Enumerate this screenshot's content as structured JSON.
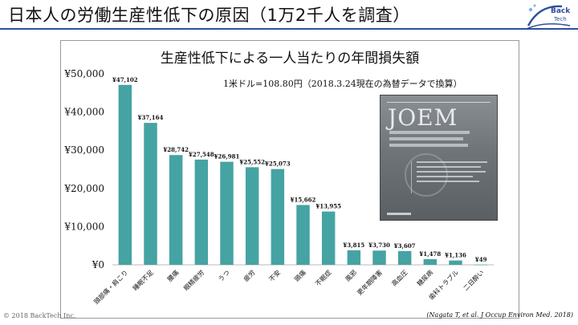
{
  "slide": {
    "title": "日本人の労働生産性低下の原因（1万2千人を調査）",
    "copyright": "© 2018 BackTech Inc.",
    "source": "(Nagata T, et al. J Occup Environ Med. 2018)",
    "logo_text": "Back Tech",
    "accent_color": "#2d4f9e"
  },
  "note": "1米ドル=108.80円（2018.3.24現在の為替データで換算）",
  "journal_cover": {
    "title": "JOEM"
  },
  "chart_data": {
    "type": "bar",
    "title": "生産性低下による一人当たりの年間損失額",
    "categories": [
      "頸部痛・肩こり",
      "睡眠不足",
      "腰痛",
      "眼精疲労",
      "うつ",
      "疲労",
      "不安",
      "頭痛",
      "不眠症",
      "風邪",
      "更年期障害",
      "高血圧",
      "糖尿病",
      "歯科トラブル",
      "二日酔い"
    ],
    "values": [
      47102,
      37164,
      28742,
      27548,
      26981,
      25552,
      25073,
      15662,
      13955,
      3815,
      3730,
      3607,
      1478,
      1136,
      49
    ],
    "value_labels": [
      "¥47,102",
      "¥37,164",
      "¥28,742",
      "¥27,548",
      "¥26,981",
      "¥25,552",
      "¥25,073",
      "¥15,662",
      "¥13,955",
      "¥3,815",
      "¥3,730",
      "¥3,607",
      "¥1,478",
      "¥1,136",
      "¥49"
    ],
    "y_ticks": [
      0,
      10000,
      20000,
      30000,
      40000,
      50000
    ],
    "y_tick_labels": [
      "¥0",
      "¥10,000",
      "¥20,000",
      "¥30,000",
      "¥40,000",
      "¥50,000"
    ],
    "ylim": [
      0,
      50000
    ],
    "xlabel": "",
    "ylabel": "",
    "grid": false,
    "bar_color": "#46a3a3"
  }
}
